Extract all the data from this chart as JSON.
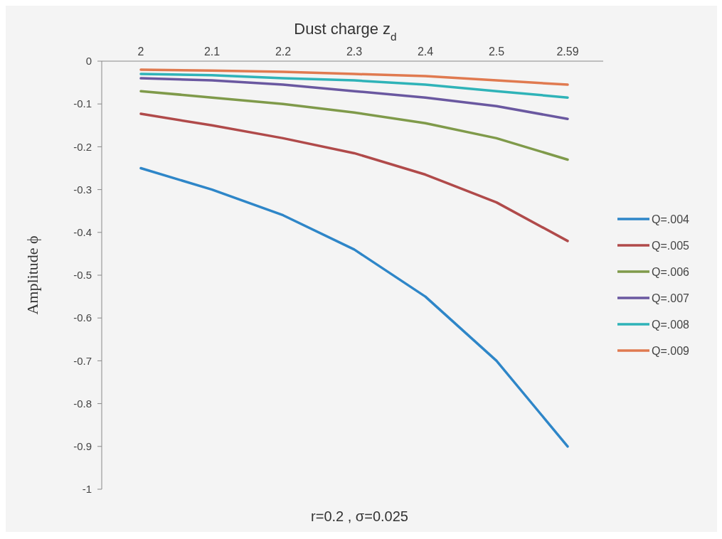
{
  "chart_data": {
    "type": "line",
    "title": "Dust charge   z$_{d}$",
    "ylabel": "Amplitude  ϕ",
    "annotations": [
      "r=0.2 , σ=0.025"
    ],
    "categories": [
      "2",
      "2.1",
      "2.2",
      "2.3",
      "2.4",
      "2.5",
      "2.59"
    ],
    "ylim": [
      -1,
      0
    ],
    "yticks": [
      0,
      -0.1,
      -0.2,
      -0.3,
      -0.4,
      -0.5,
      -0.6,
      -0.7,
      -0.8,
      -0.9,
      -1
    ],
    "grid": false,
    "legend": "right",
    "marker": "none",
    "line_style": "solid",
    "series": [
      {
        "name": "Q=.004",
        "color": "#2e86c8",
        "values": [
          -0.25,
          -0.3,
          -0.36,
          -0.44,
          -0.55,
          -0.7,
          -0.9
        ]
      },
      {
        "name": "Q=.005",
        "color": "#b04a4a",
        "values": [
          -0.123,
          -0.15,
          -0.18,
          -0.215,
          -0.265,
          -0.33,
          -0.42
        ]
      },
      {
        "name": "Q=.006",
        "color": "#7f9a4a",
        "values": [
          -0.07,
          -0.085,
          -0.1,
          -0.12,
          -0.145,
          -0.18,
          -0.23
        ]
      },
      {
        "name": "Q=.007",
        "color": "#6a58a0",
        "values": [
          -0.04,
          -0.045,
          -0.055,
          -0.07,
          -0.085,
          -0.105,
          -0.135
        ]
      },
      {
        "name": "Q=.008",
        "color": "#2fb3b8",
        "values": [
          -0.03,
          -0.033,
          -0.04,
          -0.045,
          -0.055,
          -0.07,
          -0.085
        ]
      },
      {
        "name": "Q=.009",
        "color": "#e07a50",
        "values": [
          -0.02,
          -0.022,
          -0.025,
          -0.03,
          -0.035,
          -0.045,
          -0.055
        ]
      }
    ]
  }
}
